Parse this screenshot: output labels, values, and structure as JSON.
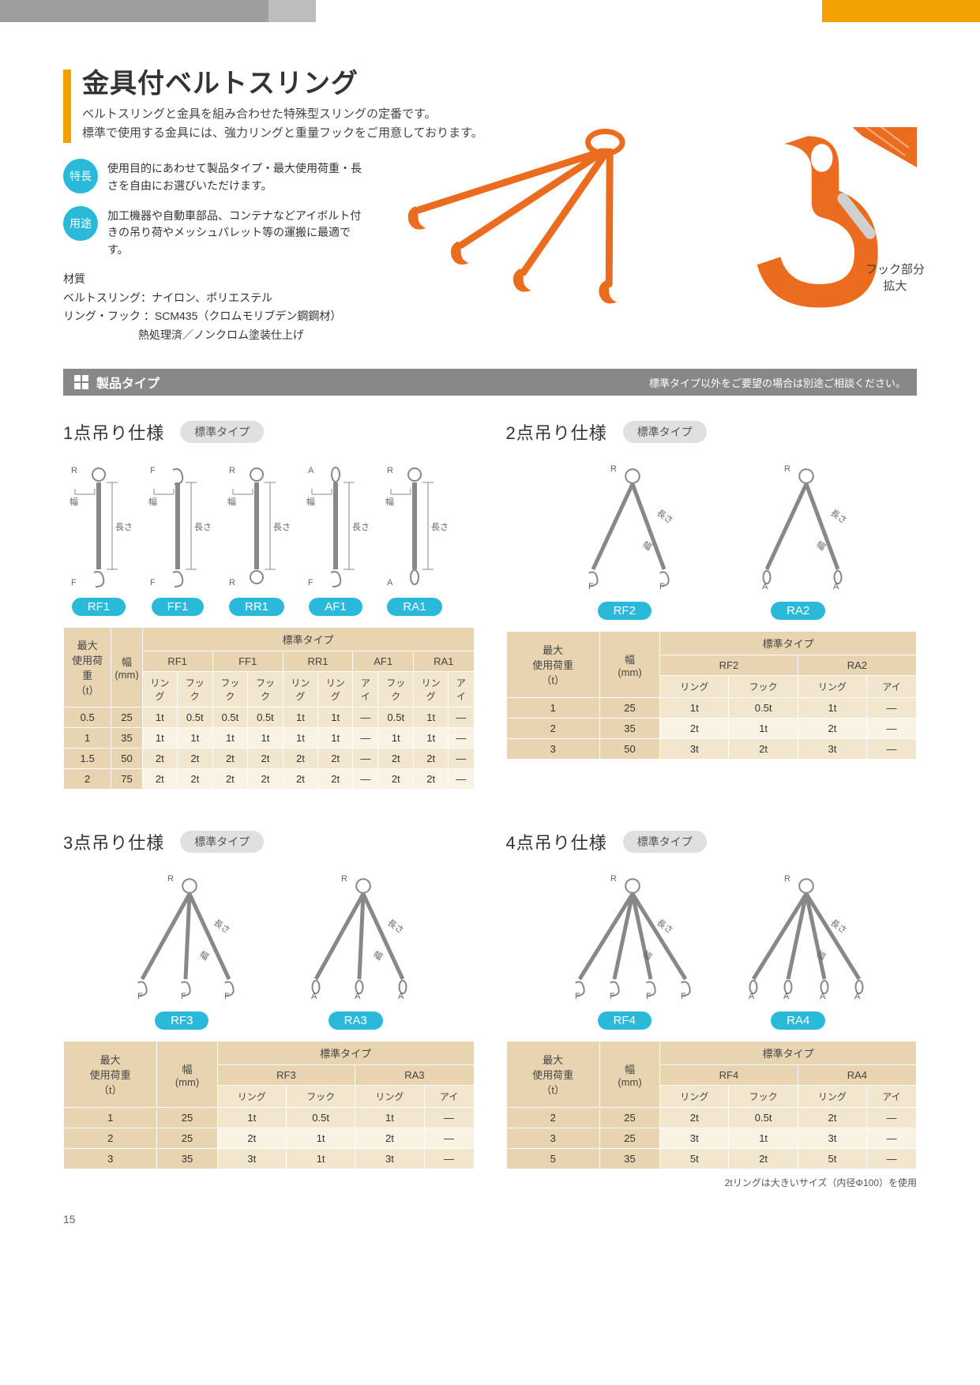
{
  "colors": {
    "accent_orange": "#f2a100",
    "accent_cyan": "#2bb9d9",
    "gray_bar": "#888888",
    "table_head": "#e8d4b0",
    "table_sub": "#f2e6cf",
    "table_row_odd": "#f2e6cf",
    "table_row_even": "#faf3e3",
    "hook_orange": "#ec6c1f"
  },
  "title": "金具付ベルトスリング",
  "subtitle_1": "ベルトスリングと金具を組み合わせた特殊型スリングの定番です。",
  "subtitle_2": "標準で使用する金具には、強力リングと重量フックをご用意しております。",
  "chips": {
    "feature_label": "特長",
    "feature_text": "使用目的にあわせて製品タイプ・最大使用荷重・長さを自由にお選びいただけます。",
    "use_label": "用途",
    "use_text": "加工機器や自動車部品、コンテナなどアイボルト付きの吊り荷やメッシュパレット等の運搬に最適です。"
  },
  "material": {
    "heading": "材質",
    "line1": "ベルトスリング：ナイロン、ポリエステル",
    "line2": "リング・フック ：SCM435（クロムモリブデン鋼鋼材）",
    "line3": "熱処理済／ノンクロム塗装仕上げ"
  },
  "hook_label_1": "フック部分",
  "hook_label_2": "拡大",
  "section_title": "製品タイプ",
  "section_note": "標準タイプ以外をご要望の場合は別途ご相談ください。",
  "std_pill": "標準タイプ",
  "spec1": {
    "title": "1点吊り仕様",
    "codes": [
      "RF1",
      "FF1",
      "RR1",
      "AF1",
      "RA1"
    ],
    "diag_labels": {
      "R": "R",
      "F": "F",
      "A": "A",
      "width": "幅",
      "length": "長さ"
    },
    "table": {
      "head_max": "最大\n使用荷重\n（t）",
      "head_width": "幅\n(mm)",
      "head_std": "標準タイプ",
      "subgroups": [
        "RF1",
        "FF1",
        "RR1",
        "AF1",
        "RA1"
      ],
      "subcols": [
        "リング",
        "フック",
        "フック",
        "フック",
        "リング",
        "リング",
        "アイ",
        "フック",
        "リング",
        "アイ"
      ],
      "rows": [
        [
          "0.5",
          "25",
          "1t",
          "0.5t",
          "0.5t",
          "0.5t",
          "1t",
          "1t",
          "—",
          "0.5t",
          "1t",
          "—"
        ],
        [
          "1",
          "35",
          "1t",
          "1t",
          "1t",
          "1t",
          "1t",
          "1t",
          "—",
          "1t",
          "1t",
          "—"
        ],
        [
          "1.5",
          "50",
          "2t",
          "2t",
          "2t",
          "2t",
          "2t",
          "2t",
          "—",
          "2t",
          "2t",
          "—"
        ],
        [
          "2",
          "75",
          "2t",
          "2t",
          "2t",
          "2t",
          "2t",
          "2t",
          "—",
          "2t",
          "2t",
          "—"
        ]
      ]
    }
  },
  "spec2": {
    "title": "2点吊り仕様",
    "codes": [
      "RF2",
      "RA2"
    ],
    "table": {
      "subgroups": [
        "RF2",
        "RA2"
      ],
      "subcols": [
        "リング",
        "フック",
        "リング",
        "アイ"
      ],
      "rows": [
        [
          "1",
          "25",
          "1t",
          "0.5t",
          "1t",
          "—"
        ],
        [
          "2",
          "35",
          "2t",
          "1t",
          "2t",
          "—"
        ],
        [
          "3",
          "50",
          "3t",
          "2t",
          "3t",
          "—"
        ]
      ]
    }
  },
  "spec3": {
    "title": "3点吊り仕様",
    "codes": [
      "RF3",
      "RA3"
    ],
    "table": {
      "subgroups": [
        "RF3",
        "RA3"
      ],
      "subcols": [
        "リング",
        "フック",
        "リング",
        "アイ"
      ],
      "rows": [
        [
          "1",
          "25",
          "1t",
          "0.5t",
          "1t",
          "—"
        ],
        [
          "2",
          "25",
          "2t",
          "1t",
          "2t",
          "—"
        ],
        [
          "3",
          "35",
          "3t",
          "1t",
          "3t",
          "—"
        ]
      ]
    }
  },
  "spec4": {
    "title": "4点吊り仕様",
    "codes": [
      "RF4",
      "RA4"
    ],
    "table": {
      "subgroups": [
        "RF4",
        "RA4"
      ],
      "subcols": [
        "リング",
        "フック",
        "リング",
        "アイ"
      ],
      "rows": [
        [
          "2",
          "25",
          "2t",
          "0.5t",
          "2t",
          "—"
        ],
        [
          "3",
          "25",
          "3t",
          "1t",
          "3t",
          "—"
        ],
        [
          "5",
          "35",
          "5t",
          "2t",
          "5t",
          "—"
        ]
      ]
    }
  },
  "footnote": "2tリングは大きいサイズ（内径Φ100）を使用",
  "page_number": "15"
}
